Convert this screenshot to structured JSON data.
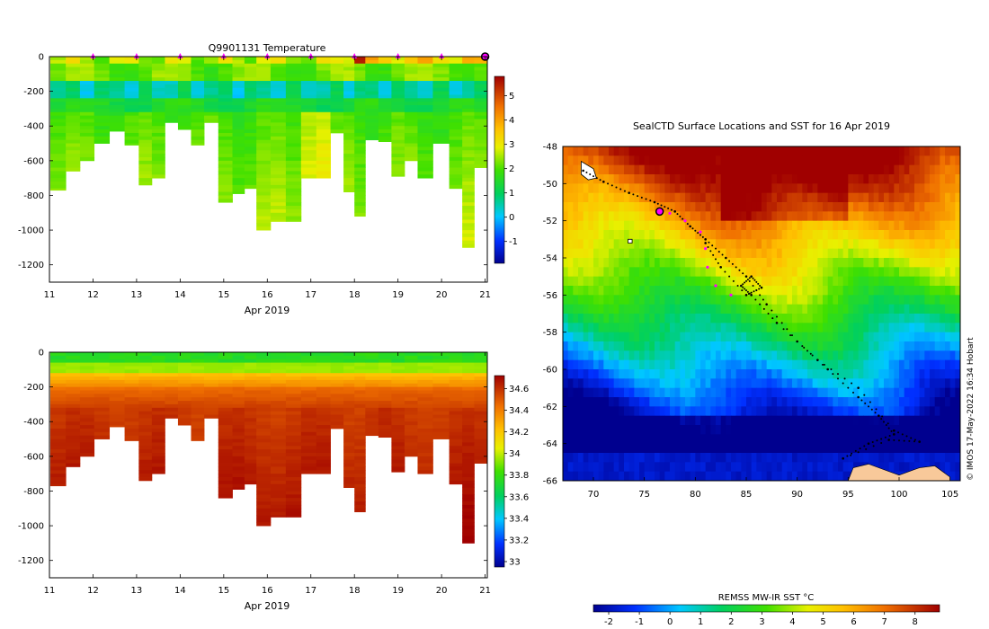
{
  "chart_data": [
    {
      "type": "heatmap",
      "title": "Q9901131  Temperature",
      "xlabel": "Apr 2019",
      "xlim": [
        11,
        21.05
      ],
      "ylim": [
        -1300,
        0
      ],
      "xticks": [
        "11",
        "12",
        "13",
        "14",
        "15",
        "16",
        "17",
        "18",
        "19",
        "20",
        "21"
      ],
      "yticks": [
        "0",
        "-200",
        "-400",
        "-600",
        "-800",
        "-1000",
        "-1200"
      ],
      "colorbar_ticks": [
        "-1",
        "0",
        "1",
        "2",
        "3",
        "4",
        "5"
      ],
      "clim": [
        -1.9,
        5.8
      ],
      "markers_days": [
        12,
        13,
        14,
        15,
        16,
        17,
        18,
        19,
        20,
        21
      ],
      "profiles": [
        {
          "t": 11.2,
          "depth": 770
        },
        {
          "t": 11.55,
          "depth": 660
        },
        {
          "t": 11.85,
          "depth": 600
        },
        {
          "t": 12.2,
          "depth": 500
        },
        {
          "t": 12.55,
          "depth": 430
        },
        {
          "t": 12.9,
          "depth": 510
        },
        {
          "t": 13.2,
          "depth": 740
        },
        {
          "t": 13.5,
          "depth": 700
        },
        {
          "t": 13.8,
          "depth": 380
        },
        {
          "t": 14.1,
          "depth": 420
        },
        {
          "t": 14.4,
          "depth": 510
        },
        {
          "t": 14.7,
          "depth": 380
        },
        {
          "t": 15.05,
          "depth": 840
        },
        {
          "t": 15.35,
          "depth": 790
        },
        {
          "t": 15.6,
          "depth": 760
        },
        {
          "t": 15.9,
          "depth": 1000
        },
        {
          "t": 16.25,
          "depth": 950
        },
        {
          "t": 16.6,
          "depth": 950
        },
        {
          "t": 16.95,
          "depth": 700
        },
        {
          "t": 17.3,
          "depth": 700
        },
        {
          "t": 17.6,
          "depth": 440
        },
        {
          "t": 17.9,
          "depth": 780
        },
        {
          "t": 18.1,
          "depth": 920
        },
        {
          "t": 18.4,
          "depth": 480
        },
        {
          "t": 18.7,
          "depth": 490
        },
        {
          "t": 19.0,
          "depth": 690
        },
        {
          "t": 19.3,
          "depth": 600
        },
        {
          "t": 19.6,
          "depth": 700
        },
        {
          "t": 20.0,
          "depth": 500
        },
        {
          "t": 20.35,
          "depth": 760
        },
        {
          "t": 20.6,
          "depth": 1100
        },
        {
          "t": 20.9,
          "depth": 640
        }
      ]
    },
    {
      "type": "heatmap",
      "title": "",
      "xlabel": "Apr 2019",
      "xlim": [
        11,
        21.05
      ],
      "ylim": [
        -1300,
        0
      ],
      "xticks": [
        "11",
        "12",
        "13",
        "14",
        "15",
        "16",
        "17",
        "18",
        "19",
        "20",
        "21"
      ],
      "yticks": [
        "0",
        "-200",
        "-400",
        "-600",
        "-800",
        "-1000",
        "-1200"
      ],
      "colorbar_ticks": [
        "33",
        "33.2",
        "33.4",
        "33.6",
        "33.8",
        "34",
        "34.2",
        "34.4",
        "34.6"
      ],
      "clim": [
        32.95,
        34.72
      ]
    },
    {
      "type": "heatmap",
      "title": "SealCTD Surface Locations and SST for 16 Apr 2019",
      "xlim": [
        67,
        106
      ],
      "ylim": [
        -66,
        -48
      ],
      "xticks": [
        "70",
        "75",
        "80",
        "85",
        "90",
        "95",
        "100",
        "105"
      ],
      "yticks": [
        "-48",
        "-50",
        "-52",
        "-54",
        "-56",
        "-58",
        "-60",
        "-62",
        "-64",
        "-66"
      ],
      "colorbar_label": "REMSS MW-IR SST °C",
      "colorbar_ticks": [
        "-2",
        "-1",
        "0",
        "1",
        "2",
        "3",
        "4",
        "5",
        "6",
        "7",
        "8"
      ],
      "clim": [
        -2.5,
        8.8
      ],
      "track": [
        {
          "lon": 69.0,
          "lat": -49.3
        },
        {
          "lon": 71.0,
          "lat": -49.9
        },
        {
          "lon": 73.5,
          "lat": -50.5
        },
        {
          "lon": 76.0,
          "lat": -51.0
        },
        {
          "lon": 78.0,
          "lat": -51.5
        },
        {
          "lon": 79.5,
          "lat": -52.3
        },
        {
          "lon": 81.0,
          "lat": -53.0
        },
        {
          "lon": 83.0,
          "lat": -54.0
        },
        {
          "lon": 85.0,
          "lat": -55.0
        },
        {
          "lon": 87.0,
          "lat": -56.5
        },
        {
          "lon": 90.0,
          "lat": -58.5
        },
        {
          "lon": 93.0,
          "lat": -60.0
        },
        {
          "lon": 96.0,
          "lat": -61.5
        },
        {
          "lon": 98.0,
          "lat": -62.5
        },
        {
          "lon": 99.5,
          "lat": -63.5
        },
        {
          "lon": 97.0,
          "lat": -64.0
        },
        {
          "lon": 94.5,
          "lat": -64.8
        },
        {
          "lon": 99.0,
          "lat": -63.8
        },
        {
          "lon": 102.0,
          "lat": -63.9
        },
        {
          "lon": 99.5,
          "lat": -63.3
        },
        {
          "lon": 96.0,
          "lat": -61.0
        },
        {
          "lon": 92.0,
          "lat": -59.5
        },
        {
          "lon": 88.0,
          "lat": -57.5
        },
        {
          "lon": 85.5,
          "lat": -56.0
        },
        {
          "lon": 84.5,
          "lat": -55.5
        },
        {
          "lon": 85.5,
          "lat": -55.0
        },
        {
          "lon": 86.5,
          "lat": -55.6
        },
        {
          "lon": 85.0,
          "lat": -56.0
        },
        {
          "lon": 82.5,
          "lat": -54.5
        },
        {
          "lon": 81.0,
          "lat": -53.2
        }
      ],
      "highlight_track": [
        {
          "lon": 77.5,
          "lat": -51.6
        },
        {
          "lon": 79.0,
          "lat": -52.0
        },
        {
          "lon": 80.5,
          "lat": -52.6
        },
        {
          "lon": 81.0,
          "lat": -53.5
        },
        {
          "lon": 81.2,
          "lat": -54.5
        },
        {
          "lon": 82.0,
          "lat": -55.5
        },
        {
          "lon": 83.5,
          "lat": -56.0
        }
      ],
      "start_marker": {
        "lon": 76.5,
        "lat": -51.5
      }
    }
  ],
  "credit": "© IMOS 17-May-2022 16:34 Hobart"
}
